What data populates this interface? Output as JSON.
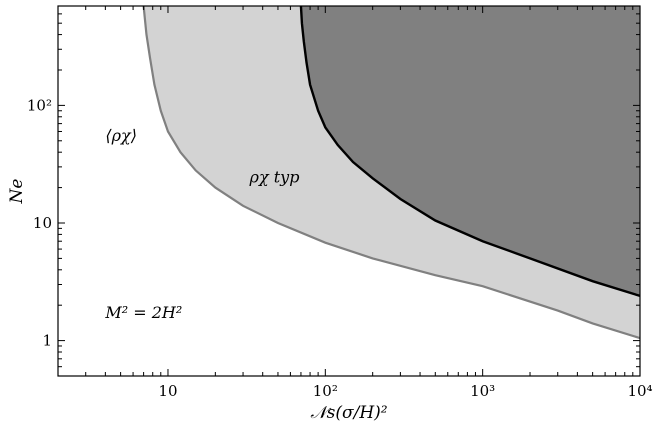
{
  "chart_data": {
    "type": "area",
    "xscale": "log",
    "yscale": "log",
    "xlim": [
      2,
      10000
    ],
    "ylim": [
      0.5,
      700
    ],
    "xlabel": "𝒩s(σ/H)²",
    "ylabel": "Ne",
    "xticks": [
      {
        "value": 10,
        "label": "10"
      },
      {
        "value": 100,
        "label": "10²"
      },
      {
        "value": 1000,
        "label": "10³"
      },
      {
        "value": 10000,
        "label": "10⁴"
      }
    ],
    "yticks": [
      {
        "value": 1,
        "label": "1"
      },
      {
        "value": 10,
        "label": "10"
      },
      {
        "value": 100,
        "label": "10²"
      }
    ],
    "grid": false,
    "series": [
      {
        "name": "⟨ρχ⟩",
        "fill": "#d3d3d3",
        "line": "#808080",
        "x": [
          7.0,
          7.3,
          7.7,
          8.2,
          9.0,
          10.0,
          12.0,
          15.0,
          20.0,
          30.0,
          50.0,
          100.0,
          200.0,
          500.0,
          1000.0,
          3000.0,
          5000.0,
          10000.0
        ],
        "y": [
          700,
          400,
          250,
          150,
          90,
          60,
          40,
          28,
          20,
          14,
          10,
          6.8,
          5.0,
          3.6,
          2.9,
          1.8,
          1.4,
          1.05
        ]
      },
      {
        "name": "ρχ typ",
        "fill": "#808080",
        "line": "#000000",
        "x": [
          70,
          71,
          73,
          76,
          80,
          90,
          100,
          120,
          150,
          200,
          300,
          500,
          1000,
          2000,
          5000,
          10000
        ],
        "y": [
          700,
          500,
          350,
          230,
          150,
          90,
          65,
          46,
          33,
          24,
          16,
          10.5,
          7.0,
          5.0,
          3.2,
          2.4
        ]
      }
    ],
    "annotations": [
      {
        "text": "⟨ρχ⟩",
        "x": 4.0,
        "y": 50
      },
      {
        "text": "ρχ typ",
        "x": 33,
        "y": 22
      },
      {
        "text": "M² = 2H²",
        "x": 4.0,
        "y": 1.55
      }
    ]
  }
}
